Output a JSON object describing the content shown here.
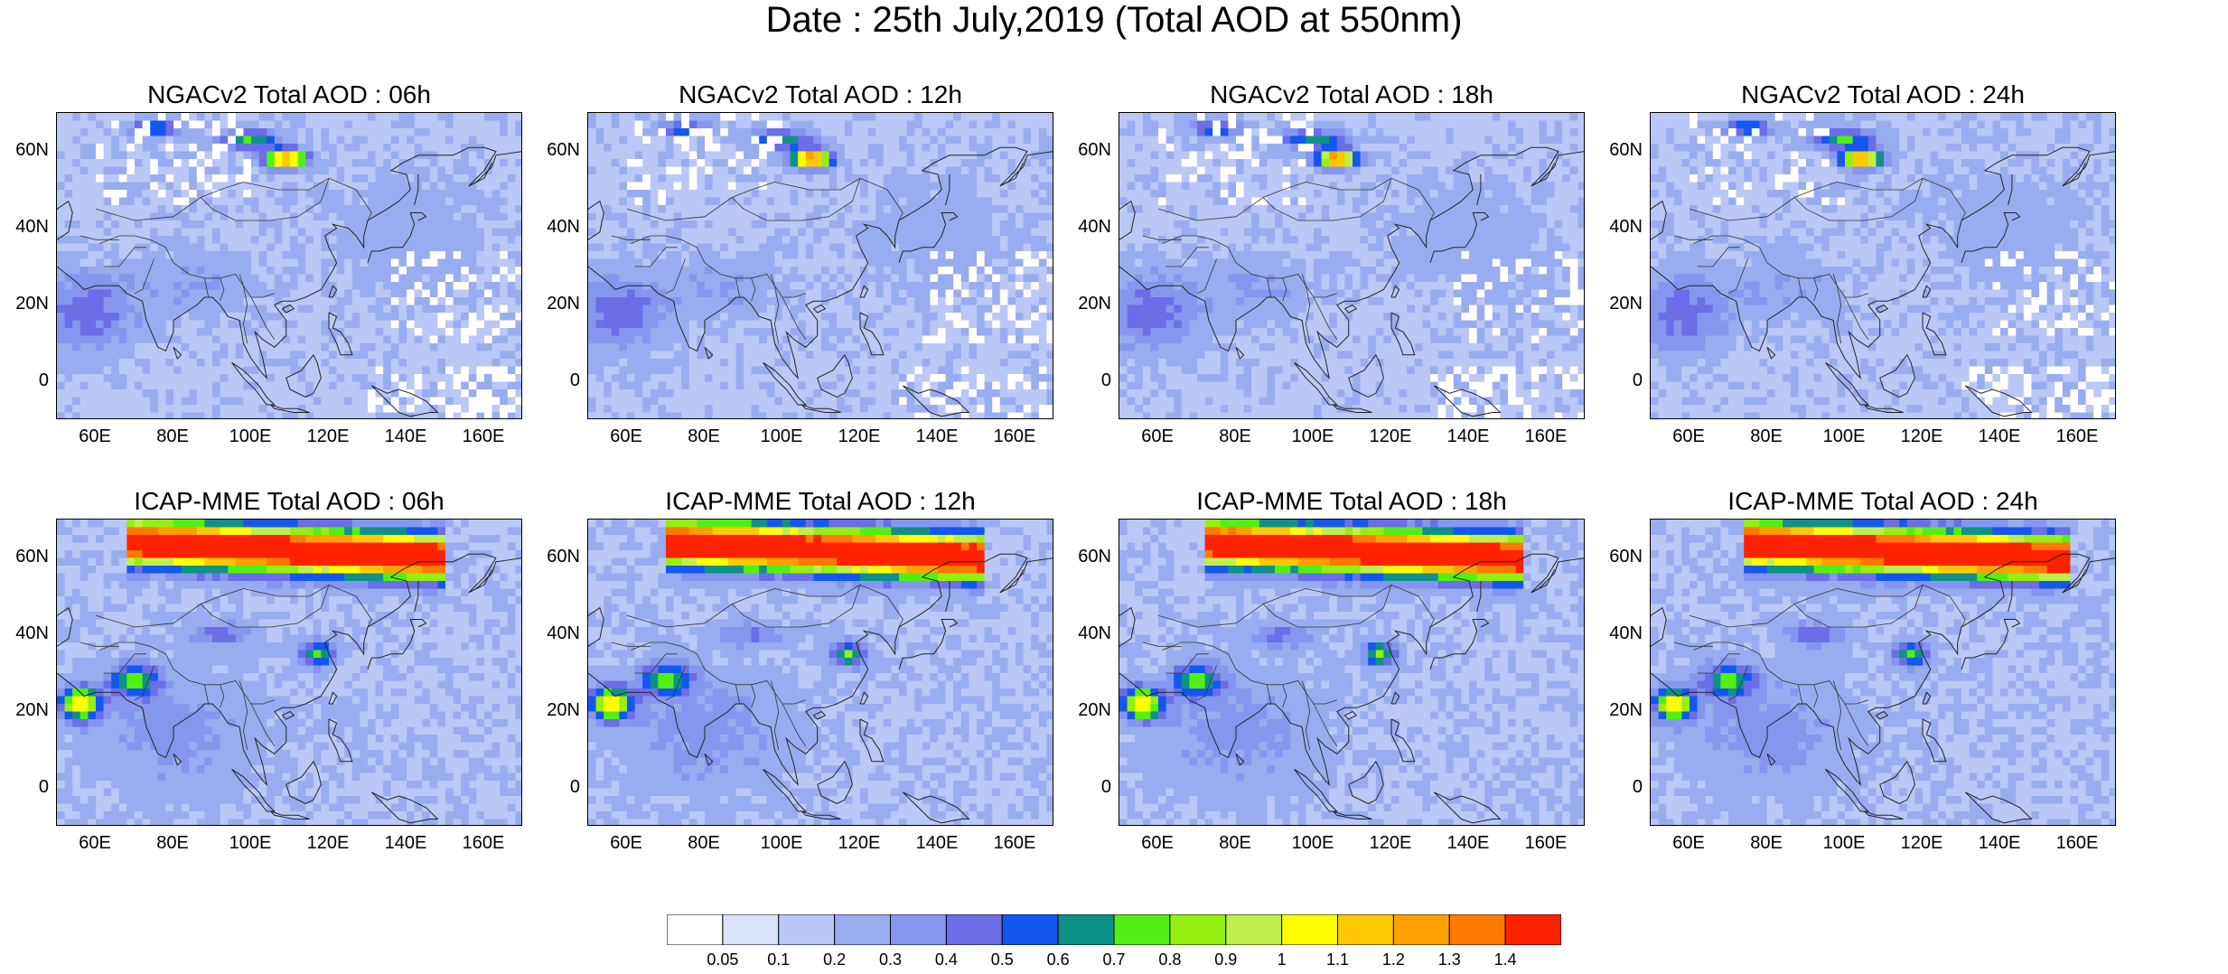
{
  "title": "Date : 25th July,2019 (Total AOD at 550nm)",
  "panels": [
    {
      "title": "NGACv2 Total AOD : 06h",
      "model": "ngac",
      "hour": 6
    },
    {
      "title": "NGACv2 Total AOD : 12h",
      "model": "ngac",
      "hour": 12
    },
    {
      "title": "NGACv2 Total AOD : 18h",
      "model": "ngac",
      "hour": 18
    },
    {
      "title": "NGACv2 Total AOD : 24h",
      "model": "ngac",
      "hour": 24
    },
    {
      "title": "ICAP-MME Total AOD : 06h",
      "model": "icap",
      "hour": 6
    },
    {
      "title": "ICAP-MME Total AOD : 12h",
      "model": "icap",
      "hour": 12
    },
    {
      "title": "ICAP-MME Total AOD : 18h",
      "model": "icap",
      "hour": 18
    },
    {
      "title": "ICAP-MME Total AOD : 24h",
      "model": "icap",
      "hour": 24
    }
  ],
  "map": {
    "lon_range": [
      50,
      170
    ],
    "lat_range": [
      -10,
      70
    ],
    "lat_ticks": [
      "60N",
      "40N",
      "20N",
      "0"
    ],
    "lat_tick_values": [
      60,
      40,
      20,
      0
    ],
    "lon_ticks": [
      "60E",
      "80E",
      "100E",
      "120E",
      "140E",
      "160E"
    ],
    "lon_tick_values": [
      60,
      80,
      100,
      120,
      140,
      160
    ]
  },
  "colorbar": {
    "labels": [
      "0.05",
      "0.1",
      "0.2",
      "0.3",
      "0.4",
      "0.5",
      "0.6",
      "0.7",
      "0.8",
      "0.9",
      "1",
      "1.1",
      "1.2",
      "1.3",
      "1.4"
    ],
    "colors": [
      "#ffffff",
      "#dbe3fb",
      "#b9c8f6",
      "#98adef",
      "#8596ee",
      "#6b6ee6",
      "#1457f0",
      "#0e9288",
      "#52f012",
      "#94f010",
      "#bff04a",
      "#ffff00",
      "#ffc800",
      "#ffa000",
      "#ff7a00",
      "#ff2200"
    ]
  }
}
